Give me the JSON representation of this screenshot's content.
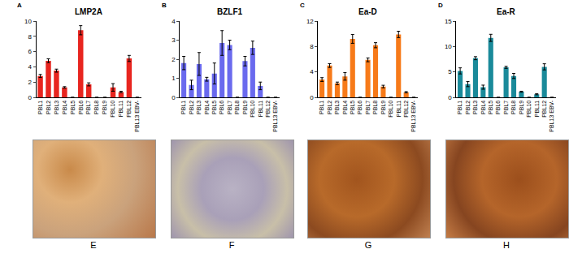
{
  "chart_data": [
    {
      "type": "bar",
      "panel": "A",
      "title": "LMP2A",
      "categories": [
        "PBL1",
        "PBL2",
        "PBL3",
        "PBL4",
        "PBL5",
        "PBL6",
        "PBL7",
        "PBL8",
        "PBL9",
        "PBL10",
        "PBL11",
        "PBL12",
        "PBL13 EBV-"
      ],
      "values": [
        2.8,
        4.8,
        3.5,
        1.3,
        0,
        8.8,
        1.7,
        0,
        0,
        1.3,
        0.7,
        5.1,
        0
      ],
      "errors": [
        0.2,
        0.25,
        0.2,
        0.1,
        0,
        0.6,
        0.2,
        0,
        0,
        0.5,
        0.1,
        0.4,
        0
      ],
      "color": "#e8251f",
      "ylim": [
        0,
        10
      ],
      "yticks": [
        0,
        2,
        4,
        6,
        8,
        10
      ],
      "grid": false
    },
    {
      "type": "bar",
      "panel": "B",
      "title": "BZLF1",
      "categories": [
        "PBL1",
        "PBL2",
        "PBL3",
        "PBL4",
        "PBL5",
        "PBL6",
        "PBL7",
        "PBL8",
        "PBL9",
        "PBL10",
        "PBL11",
        "PBL12",
        "PBL13 EBV-"
      ],
      "values": [
        1.8,
        0.65,
        1.75,
        0.95,
        1.25,
        2.85,
        2.75,
        0,
        1.9,
        2.6,
        0.6,
        0,
        0
      ],
      "errors": [
        0.35,
        0.25,
        0.6,
        0.1,
        0.55,
        0.65,
        0.25,
        0,
        0.25,
        0.35,
        0.2,
        0,
        0
      ],
      "color": "#6a6aee",
      "ylim": [
        0,
        4
      ],
      "yticks": [
        0,
        1,
        2,
        3,
        4
      ],
      "grid": false
    },
    {
      "type": "bar",
      "panel": "C",
      "title": "Ea-D",
      "categories": [
        "PBL1",
        "PBL2",
        "PBL3",
        "PBL4",
        "PBL5",
        "PBL6",
        "PBL7",
        "PBL8",
        "PBL9",
        "PBL10",
        "PBL11",
        "PBL12",
        "PBL13 EBV-"
      ],
      "values": [
        2.8,
        5.0,
        2.2,
        3.3,
        9.2,
        0,
        5.9,
        8.2,
        1.7,
        0,
        9.9,
        0.8,
        0
      ],
      "errors": [
        0.3,
        0.3,
        0.2,
        0.6,
        0.7,
        0,
        0.3,
        0.4,
        0.2,
        0,
        0.5,
        0.1,
        0
      ],
      "color": "#f77a19",
      "ylim": [
        0,
        12
      ],
      "yticks": [
        0,
        4,
        8,
        12
      ],
      "grid": false
    },
    {
      "type": "bar",
      "panel": "D",
      "title": "Ea-R",
      "categories": [
        "PBL1",
        "PBL2",
        "PBL3",
        "PBL4",
        "PBL5",
        "PBL6",
        "PBL7",
        "PBL8",
        "PBL9",
        "PBL10",
        "PBL11",
        "PBL12",
        "PBL13 EBV-"
      ],
      "values": [
        5.2,
        2.6,
        7.7,
        2.0,
        11.7,
        0,
        5.9,
        4.2,
        1.1,
        0,
        0.6,
        6.0,
        0
      ],
      "errors": [
        0.6,
        0.5,
        0.3,
        0.4,
        0.7,
        0,
        0.2,
        0.5,
        0.1,
        0,
        0.1,
        0.6,
        0
      ],
      "color": "#1a8a9a",
      "ylim": [
        0,
        15
      ],
      "yticks": [
        0,
        5,
        10,
        15
      ],
      "grid": false
    }
  ],
  "image_panels": [
    "E",
    "F",
    "G",
    "H"
  ]
}
